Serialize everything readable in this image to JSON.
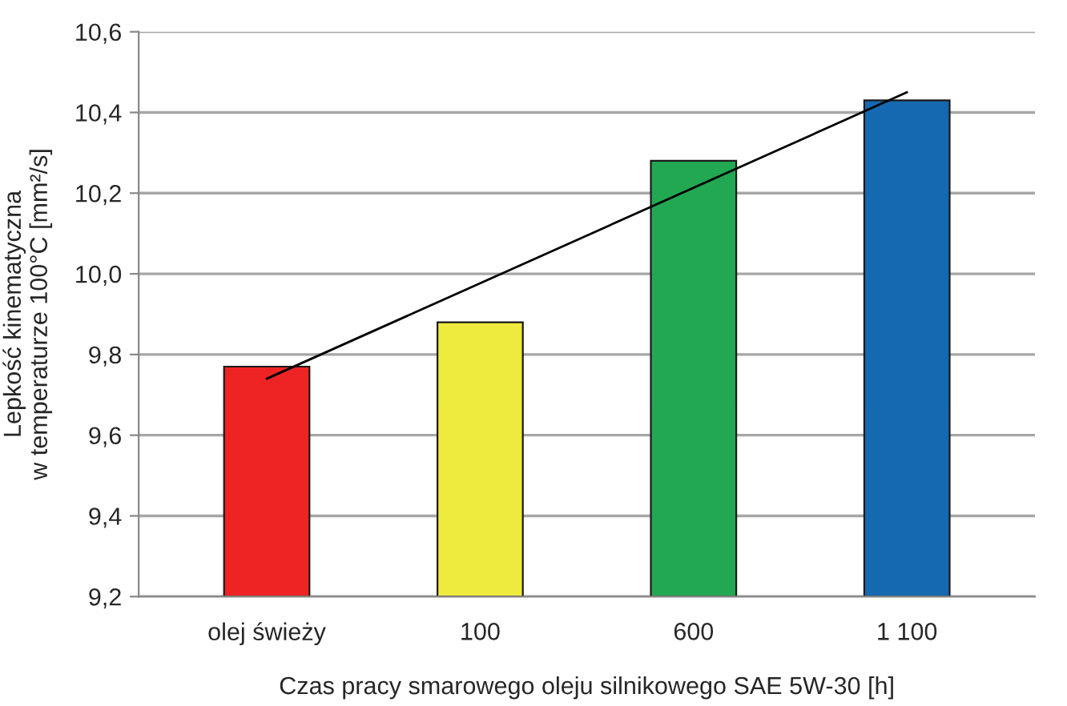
{
  "chart_data": {
    "type": "bar",
    "xlabel": "Czas pracy smarowego oleju silnikowego SAE 5W-30 [h]",
    "ylabel": "Lepkość kinematyczna\nw temperaturze 100°C [mm²/s]",
    "categories": [
      "olej świeży",
      "100",
      "600",
      "1 100"
    ],
    "series": [
      {
        "colors": [
          "#ee2424",
          "#eeea3e",
          "#22a852",
          "#1569b0"
        ],
        "values": [
          9.77,
          9.88,
          10.28,
          10.43
        ]
      },
      {
        "type": "line",
        "color": "#000000",
        "x": [
          "olej świeży",
          "1 100"
        ],
        "values": [
          9.74,
          10.45
        ]
      }
    ],
    "ylim": [
      9.2,
      10.6
    ],
    "yticks": [
      {
        "value": 9.2,
        "label": "9,2"
      },
      {
        "value": 9.4,
        "label": "9,4"
      },
      {
        "value": 9.6,
        "label": "9,6"
      },
      {
        "value": 9.8,
        "label": "9,8"
      },
      {
        "value": 10.0,
        "label": "10,0"
      },
      {
        "value": 10.2,
        "label": "10,2"
      },
      {
        "value": 10.4,
        "label": "10,4"
      },
      {
        "value": 10.6,
        "label": "10,6"
      }
    ],
    "grid": "y",
    "legend": false
  }
}
